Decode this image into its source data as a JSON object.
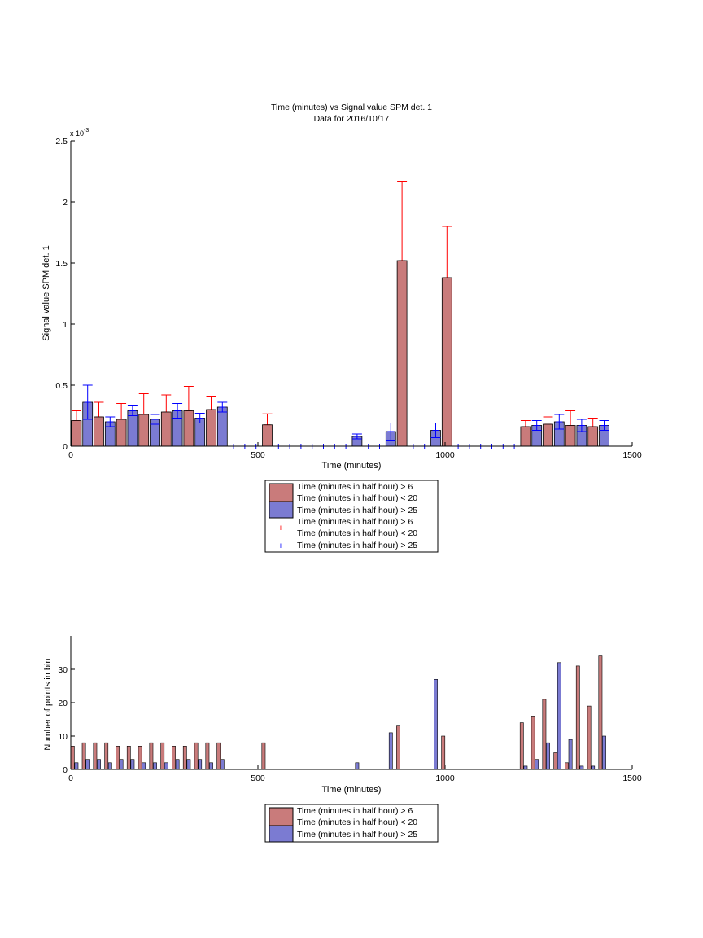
{
  "chart_data": [
    {
      "type": "bar",
      "title": "Time (minutes) vs Signal value SPM det. 1",
      "subtitle": "Data for 2016/10/17",
      "xlabel": "Time (minutes)",
      "ylabel": "Signal value SPM det. 1",
      "y_multiplier": "x 10",
      "y_multiplier_exp": "-3",
      "xlim": [
        0,
        1500
      ],
      "ylim": [
        0,
        0.0025
      ],
      "xticks": [
        0,
        500,
        1000,
        1500
      ],
      "yticks": [
        0,
        0.0005,
        0.001,
        0.0015,
        0.002,
        0.0025
      ],
      "ytick_labels": [
        "0",
        "0.5",
        "1",
        "1.5",
        "2",
        "2.5"
      ],
      "grid": false,
      "legend_position": "below",
      "legend": [
        "Time (minutes in half hour) > 6",
        "Time (minutes in half hour) < 20",
        "Time (minutes in half hour) > 25",
        "Time (minutes in half hour) > 6",
        "Time (minutes in half hour) < 20",
        "Time (minutes in half hour) > 25"
      ],
      "colors": {
        "red": "#c97b7b",
        "blue": "#7b7bd2",
        "red_err": "#ff0000",
        "blue_err": "#0000ff"
      },
      "series": [
        {
          "x": [
            15,
            75,
            135,
            195,
            255,
            315,
            375,
            525,
            885,
            1005,
            1215,
            1275,
            1335,
            1395
          ],
          "values": [
            0.00021,
            0.00024,
            0.00022,
            0.00026,
            0.00028,
            0.00029,
            0.0003,
            0.000175,
            0.00152,
            0.00138,
            0.00016,
            0.00018,
            0.00017,
            0.00016
          ],
          "err": [
            8e-05,
            0.00012,
            0.00013,
            0.00017,
            0.00014,
            0.0002,
            0.00011,
            9e-05,
            0.00065,
            0.00042,
            5e-05,
            6e-05,
            0.00012,
            7e-05
          ]
        },
        {
          "x": [
            45,
            105,
            165,
            225,
            285,
            345,
            405,
            765,
            855,
            975,
            1245,
            1305,
            1365,
            1425
          ],
          "values": [
            0.00036,
            0.0002,
            0.00029,
            0.00022,
            0.00029,
            0.00023,
            0.00032,
            8e-05,
            0.00012,
            0.00013,
            0.00017,
            0.0002,
            0.00017,
            0.00017
          ],
          "err": [
            0.00014,
            4e-05,
            4e-05,
            4e-05,
            6e-05,
            4e-05,
            4e-05,
            2e-05,
            7e-05,
            6e-05,
            4e-05,
            6e-05,
            5e-05,
            4e-05
          ]
        }
      ],
      "zero_markers_x": [
        435,
        465,
        495,
        555,
        585,
        615,
        645,
        675,
        705,
        735,
        795,
        825,
        915,
        945,
        1035,
        1065,
        1095,
        1125,
        1155,
        1185
      ]
    },
    {
      "type": "bar",
      "xlabel": "Time (minutes)",
      "ylabel": "Number of points in bin",
      "xlim": [
        0,
        1500
      ],
      "ylim": [
        0,
        40
      ],
      "xticks": [
        0,
        500,
        1000,
        1500
      ],
      "yticks": [
        0,
        10,
        20,
        30
      ],
      "grid": false,
      "legend_position": "below",
      "legend": [
        "Time (minutes in half hour) > 6",
        "Time (minutes in half hour) < 20",
        "Time (minutes in half hour) > 25"
      ],
      "series": [
        {
          "x": [
            5,
            35,
            65,
            95,
            125,
            155,
            185,
            215,
            245,
            275,
            305,
            335,
            365,
            395,
            515,
            875,
            995,
            1205,
            1235,
            1265,
            1295,
            1325,
            1355,
            1385,
            1415
          ],
          "values": [
            7,
            8,
            8,
            8,
            7,
            7,
            7,
            8,
            8,
            7,
            7,
            8,
            8,
            8,
            8,
            13,
            10,
            14,
            16,
            21,
            5,
            2,
            31,
            19,
            34
          ]
        },
        {
          "x": [
            15,
            45,
            75,
            105,
            135,
            165,
            195,
            225,
            255,
            285,
            315,
            345,
            375,
            405,
            765,
            855,
            975,
            1215,
            1245,
            1275,
            1305,
            1335,
            1365,
            1395,
            1425
          ],
          "values": [
            2,
            3,
            3,
            2,
            3,
            3,
            2,
            2,
            2,
            3,
            3,
            3,
            2,
            3,
            2,
            11,
            27,
            1,
            3,
            8,
            32,
            9,
            1,
            1,
            10
          ]
        }
      ]
    }
  ]
}
